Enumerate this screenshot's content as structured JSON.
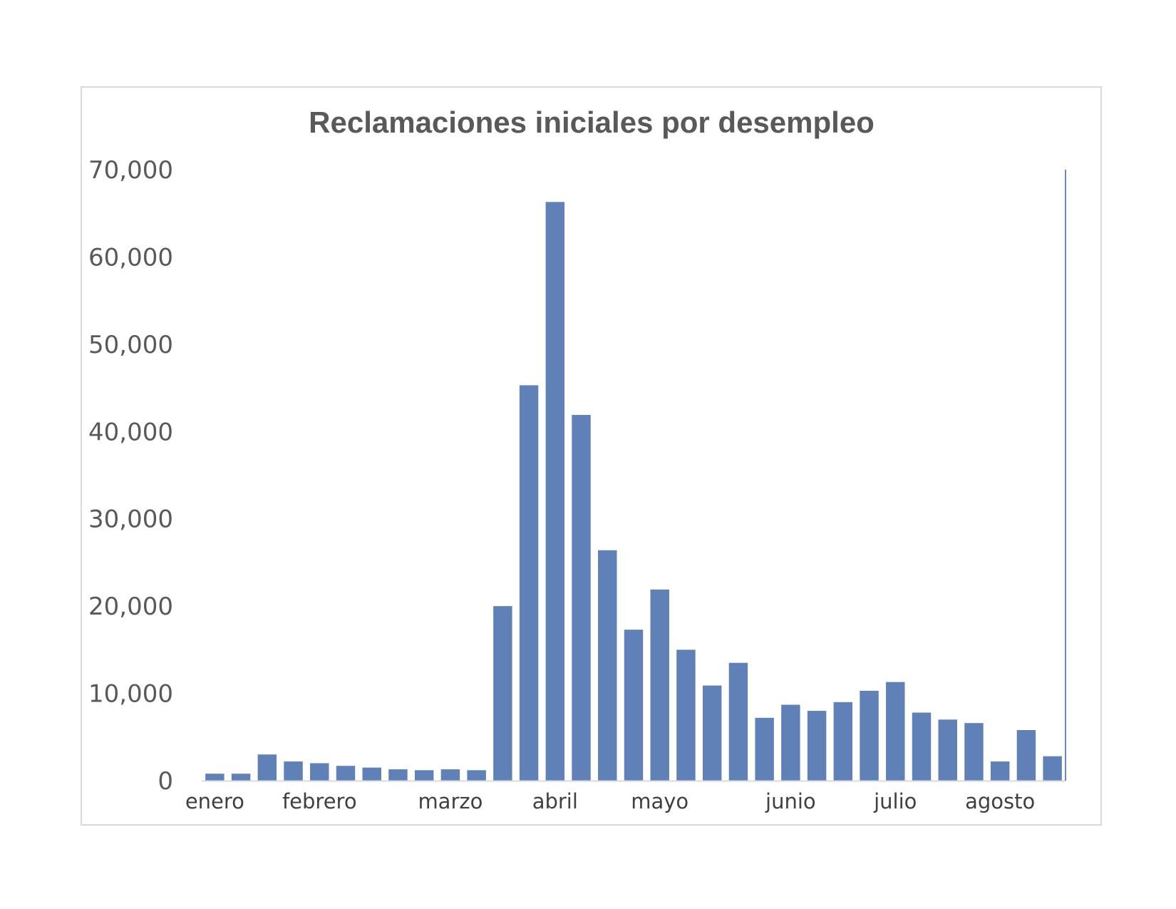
{
  "chart_data": {
    "type": "bar",
    "title": "Reclamaciones iniciales por desempleo",
    "xlabel": "",
    "ylabel": "",
    "ylim": [
      0,
      70000
    ],
    "yticks": [
      0,
      10000,
      20000,
      30000,
      40000,
      50000,
      60000,
      70000
    ],
    "ytick_labels": [
      "0",
      "10,000",
      "20,000",
      "30,000",
      "40,000",
      "50,000",
      "60,000",
      "70,000"
    ],
    "month_labels": [
      {
        "label": "enero",
        "at_bar": 0.5
      },
      {
        "label": "febrero",
        "at_bar": 4.5
      },
      {
        "label": "marzo",
        "at_bar": 9.5
      },
      {
        "label": "abril",
        "at_bar": 13.5
      },
      {
        "label": "mayo",
        "at_bar": 17.5
      },
      {
        "label": "junio",
        "at_bar": 22.5
      },
      {
        "label": "julio",
        "at_bar": 26.5
      },
      {
        "label": "agosto",
        "at_bar": 30.5
      }
    ],
    "values": [
      800,
      800,
      3000,
      2200,
      2000,
      1700,
      1500,
      1300,
      1200,
      1300,
      1200,
      20000,
      45300,
      66300,
      41900,
      26400,
      17300,
      21900,
      15000,
      10900,
      13500,
      7200,
      8700,
      8000,
      9000,
      10300,
      11300,
      7800,
      7000,
      6600,
      2200,
      5800,
      2800
    ],
    "bar_color": "#6080b8",
    "axis_color": "#d9d9d9",
    "right_line_color": "#6b89bf",
    "grid": false,
    "legend": "none"
  }
}
